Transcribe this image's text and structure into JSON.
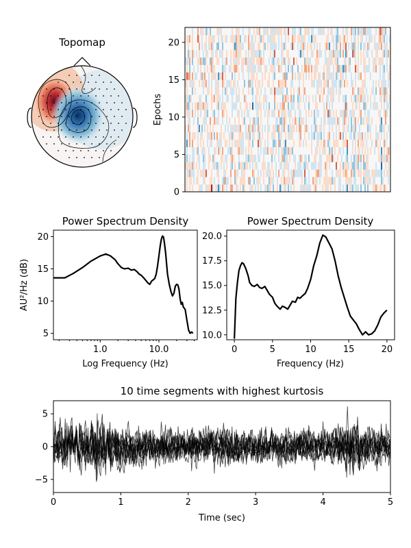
{
  "chart_data": [
    {
      "type": "heatmap",
      "name": "topomap",
      "title": "Topomap",
      "contour_lines": true,
      "sensor_markers": true,
      "colormap": "blue-white-red",
      "extrema": [
        {
          "polarity": "positive",
          "location": "left-frontal"
        },
        {
          "polarity": "negative",
          "location": "left-central"
        }
      ]
    },
    {
      "type": "heatmap",
      "name": "epochs-image",
      "title": "",
      "ylabel": "Epochs",
      "xlabel": "",
      "ylim": [
        0,
        22
      ],
      "yticks": [
        0,
        5,
        10,
        15,
        20
      ],
      "colormap": "blue-white-red"
    },
    {
      "type": "line",
      "name": "psd-log",
      "title": "Power Spectrum Density",
      "xlabel": "Log Frequency (Hz)",
      "ylabel": "AU²/Hz (dB)",
      "xscale": "log",
      "xlim": [
        0.16,
        45
      ],
      "ylim": [
        4,
        21
      ],
      "xticks": [
        {
          "value": 1,
          "label": "1.0"
        },
        {
          "value": 10,
          "label": "10.0"
        }
      ],
      "yticks": [
        5,
        10,
        15,
        20
      ],
      "series": [
        {
          "x": [
            0.16,
            0.25,
            0.35,
            0.5,
            0.7,
            1.0,
            1.25,
            1.5,
            1.8,
            2.0,
            2.3,
            2.6,
            3.0,
            3.4,
            3.8,
            4.2,
            4.6,
            5.0,
            5.5,
            6.0,
            6.5,
            7.0,
            7.5,
            8.0,
            8.5,
            9.0,
            9.5,
            10.0,
            10.5,
            11.0,
            11.5,
            12.0,
            12.5,
            13.0,
            13.5,
            14.0,
            15.0,
            16.0,
            17.0,
            18.0,
            19.0,
            20.0,
            21.0,
            22.0,
            23.0,
            24.0,
            25.0,
            26.0,
            28.0,
            30.0,
            32.0,
            34.0,
            36.0,
            38.0
          ],
          "y": [
            13.6,
            13.6,
            14.3,
            15.2,
            16.2,
            17.0,
            17.3,
            17.0,
            16.4,
            15.8,
            15.2,
            15.0,
            15.1,
            14.8,
            14.9,
            14.6,
            14.2,
            14.0,
            13.6,
            13.2,
            12.8,
            12.6,
            13.1,
            13.3,
            13.5,
            14.2,
            15.5,
            17.0,
            18.5,
            19.6,
            20.1,
            19.9,
            18.8,
            17.5,
            15.8,
            14.2,
            12.6,
            11.5,
            10.8,
            11.2,
            12.3,
            12.6,
            12.5,
            11.8,
            10.3,
            9.5,
            9.8,
            9.1,
            8.7,
            7.0,
            5.5,
            5.0,
            5.2,
            5.0
          ]
        }
      ]
    },
    {
      "type": "line",
      "name": "psd-linear",
      "title": "Power Spectrum Density",
      "xlabel": "Frequency (Hz)",
      "ylabel": "",
      "xlim": [
        -1,
        21
      ],
      "ylim": [
        9.5,
        20.6
      ],
      "xticks": [
        0,
        5,
        10,
        15,
        20
      ],
      "yticks": [
        {
          "value": 10.0,
          "label": "10.0"
        },
        {
          "value": 12.5,
          "label": "12.5"
        },
        {
          "value": 15.0,
          "label": "15.0"
        },
        {
          "value": 17.5,
          "label": "17.5"
        },
        {
          "value": 20.0,
          "label": "20.0"
        }
      ],
      "series": [
        {
          "x": [
            0.0,
            0.2,
            0.4,
            0.6,
            0.8,
            1.0,
            1.2,
            1.5,
            1.8,
            2.0,
            2.3,
            2.6,
            3.0,
            3.3,
            3.6,
            4.0,
            4.3,
            4.6,
            5.0,
            5.3,
            5.6,
            6.0,
            6.3,
            6.6,
            7.0,
            7.3,
            7.6,
            8.0,
            8.3,
            8.6,
            9.0,
            9.3,
            9.6,
            10.0,
            10.4,
            10.8,
            11.2,
            11.6,
            12.0,
            12.4,
            12.8,
            13.2,
            13.6,
            14.0,
            14.4,
            14.8,
            15.2,
            15.6,
            16.0,
            16.4,
            16.8,
            17.2,
            17.6,
            18.0,
            18.4,
            18.8,
            19.2,
            19.6,
            20.0
          ],
          "y": [
            9.6,
            13.7,
            15.3,
            16.5,
            17.0,
            17.3,
            17.2,
            16.7,
            16.0,
            15.3,
            15.0,
            14.9,
            15.1,
            14.8,
            14.7,
            14.9,
            14.5,
            14.1,
            13.8,
            13.2,
            12.9,
            12.6,
            12.9,
            12.8,
            12.6,
            13.0,
            13.4,
            13.3,
            13.8,
            13.7,
            14.0,
            14.2,
            14.7,
            15.6,
            17.0,
            18.0,
            19.3,
            20.1,
            19.9,
            19.3,
            18.7,
            17.5,
            16.0,
            14.8,
            13.8,
            12.8,
            11.9,
            11.5,
            11.1,
            10.5,
            10.0,
            10.3,
            10.0,
            10.1,
            10.4,
            11.0,
            11.8,
            12.2,
            12.5
          ]
        }
      ]
    },
    {
      "type": "line",
      "name": "kurtosis-segments",
      "title": "10 time segments with highest kurtosis",
      "xlabel": "Time (sec)",
      "ylabel": "",
      "xlim": [
        0,
        5
      ],
      "ylim": [
        -7,
        7
      ],
      "xticks": [
        0,
        1,
        2,
        3,
        4,
        5
      ],
      "yticks": [
        {
          "value": -5,
          "label": "−5"
        },
        {
          "value": 0,
          "label": "0"
        },
        {
          "value": 5,
          "label": "5"
        }
      ],
      "series_count": 10,
      "approx_amplitude_range": [
        -6,
        7
      ]
    }
  ]
}
